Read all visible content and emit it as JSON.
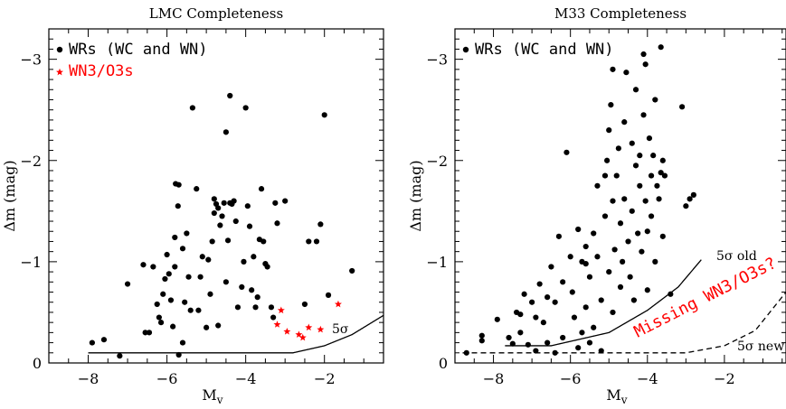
{
  "chart_data": [
    {
      "type": "scatter",
      "title": "LMC Completeness",
      "xlabel": "M",
      "xlabel_sub": "v",
      "ylabel": "Δm (mag)",
      "xlim": [
        -9,
        -0.5
      ],
      "ylim": [
        0,
        -3.3
      ],
      "x_ticks": [
        -8,
        -6,
        -4,
        -2
      ],
      "x_tick_labels": [
        "−8",
        "−6",
        "−4",
        "−2"
      ],
      "y_ticks": [
        0,
        -1,
        -2,
        -3
      ],
      "y_tick_labels": [
        "0",
        "−1",
        "−2",
        "−3"
      ],
      "legend": [
        {
          "label": "WRs (WC and WN)",
          "marker": "dot",
          "color": "#000000"
        },
        {
          "label": "WN3/O3s",
          "marker": "star",
          "color": "#ff0000"
        }
      ],
      "series": [
        {
          "name": "WRs (WC and WN)",
          "marker": "dot",
          "color": "#000000",
          "points": [
            [
              -7.9,
              -0.2
            ],
            [
              -7.6,
              -0.23
            ],
            [
              -7.2,
              -0.07
            ],
            [
              -7.0,
              -0.78
            ],
            [
              -6.6,
              -0.97
            ],
            [
              -6.55,
              -0.3
            ],
            [
              -6.45,
              -0.3
            ],
            [
              -6.35,
              -0.95
            ],
            [
              -6.25,
              -0.58
            ],
            [
              -6.2,
              -0.45
            ],
            [
              -6.15,
              -0.4
            ],
            [
              -6.1,
              -0.68
            ],
            [
              -6.05,
              -0.83
            ],
            [
              -6.0,
              -1.07
            ],
            [
              -5.95,
              -0.88
            ],
            [
              -5.9,
              -0.62
            ],
            [
              -5.85,
              -0.36
            ],
            [
              -5.8,
              -1.24
            ],
            [
              -5.8,
              -0.95
            ],
            [
              -5.78,
              -1.77
            ],
            [
              -5.72,
              -1.55
            ],
            [
              -5.7,
              -1.76
            ],
            [
              -5.7,
              -0.08
            ],
            [
              -5.6,
              -0.2
            ],
            [
              -5.6,
              -1.13
            ],
            [
              -5.55,
              -0.6
            ],
            [
              -5.5,
              -1.28
            ],
            [
              -5.45,
              -0.85
            ],
            [
              -5.4,
              -0.52
            ],
            [
              -5.35,
              -2.52
            ],
            [
              -5.25,
              -1.72
            ],
            [
              -5.2,
              -0.52
            ],
            [
              -5.15,
              -0.85
            ],
            [
              -5.1,
              -1.05
            ],
            [
              -5.0,
              -0.35
            ],
            [
              -4.95,
              -1.02
            ],
            [
              -4.9,
              -0.68
            ],
            [
              -4.85,
              -1.2
            ],
            [
              -4.8,
              -1.62
            ],
            [
              -4.8,
              -1.48
            ],
            [
              -4.75,
              -1.57
            ],
            [
              -4.7,
              -1.53
            ],
            [
              -4.7,
              -0.37
            ],
            [
              -4.65,
              -1.36
            ],
            [
              -4.6,
              -1.45
            ],
            [
              -4.55,
              -1.58
            ],
            [
              -4.5,
              -2.28
            ],
            [
              -4.5,
              -0.8
            ],
            [
              -4.45,
              -1.21
            ],
            [
              -4.4,
              -2.64
            ],
            [
              -4.4,
              -1.58
            ],
            [
              -4.35,
              -1.57
            ],
            [
              -4.3,
              -1.6
            ],
            [
              -4.25,
              -1.4
            ],
            [
              -4.2,
              -0.55
            ],
            [
              -4.1,
              -0.75
            ],
            [
              -4.05,
              -1.0
            ],
            [
              -4.0,
              -2.52
            ],
            [
              -3.95,
              -1.55
            ],
            [
              -3.9,
              -1.35
            ],
            [
              -3.85,
              -0.72
            ],
            [
              -3.8,
              -1.05
            ],
            [
              -3.75,
              -0.55
            ],
            [
              -3.7,
              -0.65
            ],
            [
              -3.65,
              -1.22
            ],
            [
              -3.6,
              -1.72
            ],
            [
              -3.55,
              -1.2
            ],
            [
              -3.5,
              -0.98
            ],
            [
              -3.45,
              -0.95
            ],
            [
              -3.35,
              -0.55
            ],
            [
              -3.3,
              -0.45
            ],
            [
              -3.25,
              -1.58
            ],
            [
              -3.2,
              -1.38
            ],
            [
              -3.0,
              -1.6
            ],
            [
              -2.5,
              -0.58
            ],
            [
              -2.4,
              -1.2
            ],
            [
              -2.2,
              -1.2
            ],
            [
              -2.1,
              -1.37
            ],
            [
              -2.0,
              -2.45
            ],
            [
              -1.9,
              -0.67
            ],
            [
              -1.3,
              -0.91
            ]
          ]
        },
        {
          "name": "WN3/O3s",
          "marker": "star",
          "color": "#ff0000",
          "points": [
            [
              -3.1,
              -0.52
            ],
            [
              -3.2,
              -0.38
            ],
            [
              -2.95,
              -0.31
            ],
            [
              -2.65,
              -0.28
            ],
            [
              -2.55,
              -0.25
            ],
            [
              -2.4,
              -0.35
            ],
            [
              -2.1,
              -0.33
            ],
            [
              -1.65,
              -0.58
            ]
          ]
        }
      ],
      "curves": [
        {
          "label": "5σ",
          "style": "solid",
          "color": "#000000",
          "points": [
            [
              -8,
              -0.1
            ],
            [
              -2.8,
              -0.1
            ],
            [
              -2.0,
              -0.17
            ],
            [
              -1.3,
              -0.28
            ],
            [
              -0.5,
              -0.47
            ]
          ]
        }
      ]
    },
    {
      "type": "scatter",
      "title": "M33 Completeness",
      "xlabel": "M",
      "xlabel_sub": "v",
      "ylabel": "Δm (mag)",
      "xlim": [
        -9,
        -0.4
      ],
      "ylim": [
        0,
        -3.3
      ],
      "x_ticks": [
        -8,
        -6,
        -4,
        -2
      ],
      "x_tick_labels": [
        "−8",
        "−6",
        "−4",
        "−2"
      ],
      "y_ticks": [
        0,
        -1,
        -2,
        -3
      ],
      "y_tick_labels": [
        "0",
        "−1",
        "−2",
        "−3"
      ],
      "legend": [
        {
          "label": "WRs (WC and WN)",
          "marker": "dot",
          "color": "#000000"
        }
      ],
      "annotation": {
        "text": "Missing WN3/O3s?",
        "color": "#ff0000",
        "rotation_deg": -27
      },
      "series": [
        {
          "name": "WRs (WC and WN)",
          "marker": "dot",
          "color": "#000000",
          "points": [
            [
              -8.7,
              -0.1
            ],
            [
              -8.3,
              -0.22
            ],
            [
              -8.3,
              -0.27
            ],
            [
              -7.9,
              -0.43
            ],
            [
              -7.6,
              -0.25
            ],
            [
              -7.5,
              -0.19
            ],
            [
              -7.4,
              -0.5
            ],
            [
              -7.3,
              -0.3
            ],
            [
              -7.2,
              -0.68
            ],
            [
              -7.1,
              -0.18
            ],
            [
              -7.0,
              -0.6
            ],
            [
              -6.9,
              -0.45
            ],
            [
              -6.8,
              -0.78
            ],
            [
              -6.7,
              -0.4
            ],
            [
              -6.6,
              -0.2
            ],
            [
              -6.5,
              -0.95
            ],
            [
              -6.4,
              -0.6
            ],
            [
              -6.3,
              -1.25
            ],
            [
              -6.2,
              -0.8
            ],
            [
              -6.2,
              -0.25
            ],
            [
              -6.1,
              -2.08
            ],
            [
              -6.0,
              -1.05
            ],
            [
              -5.95,
              -0.7
            ],
            [
              -5.9,
              -0.45
            ],
            [
              -5.8,
              -0.15
            ],
            [
              -5.8,
              -1.32
            ],
            [
              -5.7,
              -1.0
            ],
            [
              -5.7,
              -0.3
            ],
            [
              -5.6,
              -1.15
            ],
            [
              -5.6,
              -0.55
            ],
            [
              -5.5,
              -0.2
            ],
            [
              -5.5,
              -0.85
            ],
            [
              -5.4,
              -1.28
            ],
            [
              -5.4,
              -0.35
            ],
            [
              -5.3,
              -1.05
            ],
            [
              -5.3,
              -1.75
            ],
            [
              -5.2,
              -0.62
            ],
            [
              -5.2,
              -0.12
            ],
            [
              -5.1,
              -1.85
            ],
            [
              -5.1,
              -1.45
            ],
            [
              -5.05,
              -2.0
            ],
            [
              -5.0,
              -2.3
            ],
            [
              -5.0,
              -0.9
            ],
            [
              -4.95,
              -2.55
            ],
            [
              -4.9,
              -1.6
            ],
            [
              -4.9,
              -0.5
            ],
            [
              -4.85,
              -1.12
            ],
            [
              -4.8,
              -1.85
            ],
            [
              -4.75,
              -2.12
            ],
            [
              -4.7,
              -1.38
            ],
            [
              -4.7,
              -0.75
            ],
            [
              -4.65,
              -1.0
            ],
            [
              -4.6,
              -2.38
            ],
            [
              -4.6,
              -1.62
            ],
            [
              -4.55,
              -2.87
            ],
            [
              -4.5,
              -1.2
            ],
            [
              -4.45,
              -0.85
            ],
            [
              -4.4,
              -2.17
            ],
            [
              -4.4,
              -1.5
            ],
            [
              -4.35,
              -0.62
            ],
            [
              -4.3,
              -2.7
            ],
            [
              -4.3,
              -1.95
            ],
            [
              -4.25,
              -1.28
            ],
            [
              -4.2,
              -2.05
            ],
            [
              -4.2,
              -1.75
            ],
            [
              -4.15,
              -1.1
            ],
            [
              -4.1,
              -3.05
            ],
            [
              -4.1,
              -2.45
            ],
            [
              -4.05,
              -2.95
            ],
            [
              -4.05,
              -1.6
            ],
            [
              -4.0,
              -1.3
            ],
            [
              -4.0,
              -0.72
            ],
            [
              -3.95,
              -2.22
            ],
            [
              -3.9,
              -1.85
            ],
            [
              -3.9,
              -1.45
            ],
            [
              -3.85,
              -2.05
            ],
            [
              -3.8,
              -1.0
            ],
            [
              -3.8,
              -2.6
            ],
            [
              -3.75,
              -1.75
            ],
            [
              -3.7,
              -1.62
            ],
            [
              -3.65,
              -3.12
            ],
            [
              -3.65,
              -1.88
            ],
            [
              -3.6,
              -2.0
            ],
            [
              -3.6,
              -1.25
            ],
            [
              -3.55,
              -1.85
            ],
            [
              -3.4,
              -0.68
            ],
            [
              -3.1,
              -2.53
            ],
            [
              -3.0,
              -1.55
            ],
            [
              -2.9,
              -1.62
            ],
            [
              -2.8,
              -1.66
            ],
            [
              -6.6,
              -0.65
            ],
            [
              -6.9,
              -0.12
            ],
            [
              -7.3,
              -0.48
            ],
            [
              -6.4,
              -0.1
            ],
            [
              -5.6,
              -0.98
            ],
            [
              -4.9,
              -2.9
            ]
          ]
        }
      ],
      "curves": [
        {
          "label": "5σ old",
          "style": "solid",
          "color": "#000000",
          "points": [
            [
              -7.7,
              -0.17
            ],
            [
              -6.5,
              -0.17
            ],
            [
              -5.0,
              -0.3
            ],
            [
              -4.0,
              -0.52
            ],
            [
              -3.2,
              -0.75
            ],
            [
              -2.6,
              -1.02
            ]
          ]
        },
        {
          "label": "5σ new",
          "style": "dashed",
          "color": "#000000",
          "points": [
            [
              -8.8,
              -0.1
            ],
            [
              -3.0,
              -0.1
            ],
            [
              -2.0,
              -0.17
            ],
            [
              -1.2,
              -0.32
            ],
            [
              -0.4,
              -0.7
            ]
          ]
        }
      ]
    }
  ]
}
